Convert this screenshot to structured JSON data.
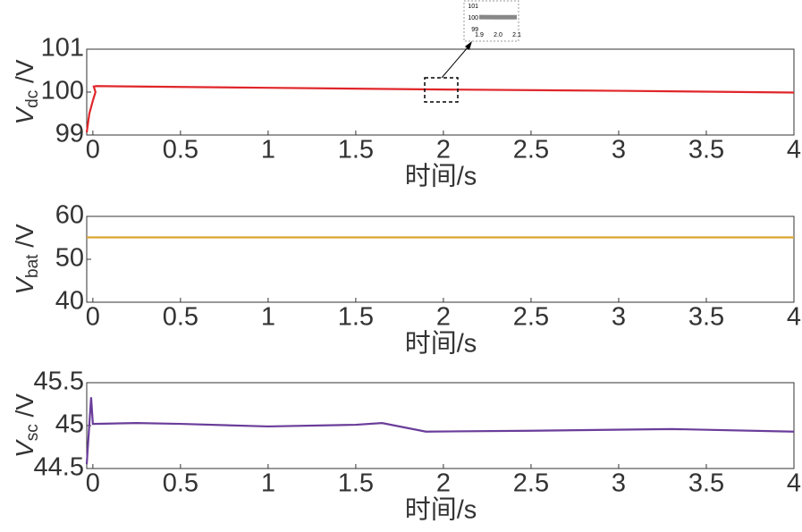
{
  "chart_data": [
    {
      "type": "line",
      "xlabel": "时间/s",
      "ylabel": "V",
      "ylabel_sub": "dc",
      "ylabel_unit": " /V",
      "x": [
        -0.035,
        -0.02,
        0,
        0.015,
        0.005,
        0.02,
        1,
        2,
        3,
        4
      ],
      "values": [
        99.06,
        99.5,
        99.8,
        100.0,
        100.13,
        100.14,
        100.1,
        100.06,
        100.03,
        99.99
      ],
      "color": "#e0262a",
      "xlim": [
        -0.035,
        4
      ],
      "ylim": [
        99,
        101
      ],
      "xticks": [
        0,
        0.5,
        1,
        1.5,
        2,
        2.5,
        3,
        3.5,
        4
      ],
      "yticks": [
        99,
        100,
        101
      ],
      "inset": {
        "xlim": [
          1.9,
          2.1
        ],
        "ylim": [
          99,
          101
        ],
        "yticks": [
          99,
          100,
          101
        ],
        "xticks": [
          1.9,
          {
            "value": 2,
            "label": "2.0"
          },
          2.1
        ]
      }
    },
    {
      "type": "line",
      "xlabel": "时间/s",
      "ylabel": "V",
      "ylabel_sub": "bat",
      "ylabel_unit": " /V",
      "x": [
        -0.035,
        4
      ],
      "values": [
        55.1,
        55.1
      ],
      "color": "#d9a62e",
      "xlim": [
        -0.035,
        4
      ],
      "ylim": [
        40,
        60
      ],
      "xticks": [
        0,
        0.5,
        1,
        1.5,
        2,
        2.5,
        3,
        3.5,
        4
      ],
      "yticks": [
        40,
        50,
        60
      ]
    },
    {
      "type": "line",
      "xlabel": "时间/s",
      "ylabel": "V",
      "ylabel_sub": "sc",
      "ylabel_unit": " /V",
      "x": [
        -0.035,
        -0.01,
        0,
        0.25,
        0.5,
        1,
        1.5,
        1.65,
        1.9,
        2.5,
        3.3,
        4
      ],
      "values": [
        44.55,
        45.33,
        45.02,
        45.03,
        45.02,
        44.99,
        45.01,
        45.03,
        44.93,
        44.94,
        44.96,
        44.93
      ],
      "color": "#6a3d9a",
      "xlim": [
        -0.035,
        4
      ],
      "ylim": [
        44.5,
        45.5
      ],
      "xticks": [
        0,
        0.5,
        1,
        1.5,
        2,
        2.5,
        3,
        3.5,
        4
      ],
      "yticks": [
        44.5,
        45,
        45.5
      ]
    }
  ]
}
